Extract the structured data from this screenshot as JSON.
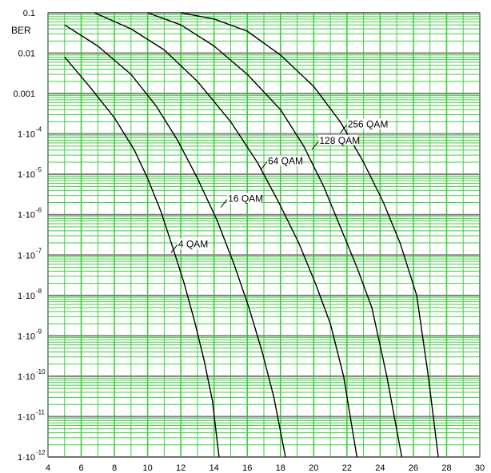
{
  "chart_data": {
    "type": "line",
    "ylabel": "BER",
    "yscale": "log",
    "xlim": [
      4,
      30
    ],
    "ylim": [
      1e-12,
      0.1
    ],
    "x_ticks": [
      "4",
      "6",
      "8",
      "10",
      "12",
      "14",
      "16",
      "18",
      "20",
      "22",
      "24",
      "26",
      "28",
      "30"
    ],
    "y_ticks": [
      {
        "value": 0.1,
        "text": "0.1",
        "sup": ""
      },
      {
        "value": 0.01,
        "text": "0.01",
        "sup": ""
      },
      {
        "value": 0.001,
        "text": "0.001",
        "sup": ""
      },
      {
        "value": 0.0001,
        "text": "1·10",
        "sup": "-4"
      },
      {
        "value": 1e-05,
        "text": "1·10",
        "sup": "-5"
      },
      {
        "value": 1e-06,
        "text": "1·10",
        "sup": "-6"
      },
      {
        "value": 1e-07,
        "text": "1·10",
        "sup": "-7"
      },
      {
        "value": 1e-08,
        "text": "1·10",
        "sup": "-8"
      },
      {
        "value": 1e-09,
        "text": "1·10",
        "sup": "-9"
      },
      {
        "value": 1e-10,
        "text": "1·10",
        "sup": "-10"
      },
      {
        "value": 1e-11,
        "text": "1·10",
        "sup": "-11"
      },
      {
        "value": 1e-12,
        "text": "1·10",
        "sup": "-12"
      }
    ],
    "grid": true,
    "colors": {
      "major_grid": "#808080",
      "minor_grid": "#3fcf3f",
      "curve": "#000000",
      "background": "#ffffff"
    },
    "series": [
      {
        "name": "4 QAM",
        "x": [
          5.0,
          6.5,
          8.0,
          9.2,
          10.0,
          10.8,
          11.5,
          12.2,
          12.8,
          13.4,
          13.9,
          14.3
        ],
        "y": [
          0.008,
          0.0015,
          0.00025,
          4e-05,
          8e-06,
          1.2e-06,
          1.6e-07,
          2e-08,
          2.5e-09,
          2.5e-10,
          2.5e-11,
          1e-12
        ]
      },
      {
        "name": "16 QAM",
        "x": [
          5.0,
          7.0,
          9.0,
          10.5,
          11.8,
          13.0,
          14.2,
          15.2,
          16.1,
          16.9,
          17.6,
          18.3
        ],
        "y": [
          0.05,
          0.015,
          0.003,
          0.0005,
          7e-05,
          8e-06,
          7e-07,
          6e-08,
          5e-09,
          4e-10,
          3e-11,
          1e-12
        ]
      },
      {
        "name": "64 QAM",
        "x": [
          6.8,
          9.0,
          11.0,
          13.0,
          15.0,
          16.6,
          17.9,
          19.1,
          20.1,
          21.0,
          21.8,
          22.6
        ],
        "y": [
          0.1,
          0.04,
          0.012,
          0.002,
          0.0002,
          2e-05,
          2e-06,
          2e-07,
          2e-08,
          2e-09,
          1e-10,
          1e-12
        ]
      },
      {
        "name": "128 QAM",
        "x": [
          10.0,
          12.0,
          14.0,
          16.0,
          18.0,
          19.4,
          20.6,
          21.6,
          22.6,
          23.5,
          24.4,
          25.3
        ],
        "y": [
          0.1,
          0.05,
          0.015,
          0.003,
          0.0004,
          5e-05,
          5e-06,
          5e-07,
          5e-08,
          5e-09,
          1e-10,
          1e-12
        ]
      },
      {
        "name": "256 QAM",
        "x": [
          12.0,
          14.0,
          16.0,
          18.0,
          20.0,
          21.6,
          23.0,
          24.2,
          25.2,
          26.2,
          26.9,
          27.5
        ],
        "y": [
          0.1,
          0.07,
          0.035,
          0.009,
          0.0015,
          0.0002,
          2e-05,
          2e-06,
          2e-07,
          1e-08,
          1e-10,
          1e-12
        ]
      }
    ],
    "annotations": [
      {
        "text": "4 QAM",
        "series": "4 QAM",
        "x": 11.6,
        "y": 1.5e-07
      },
      {
        "text": "16 QAM",
        "series": "16 QAM",
        "x": 14.6,
        "y": 2e-06
      },
      {
        "text": "64 QAM",
        "series": "64 QAM",
        "x": 17.0,
        "y": 1.7e-05
      },
      {
        "text": "128 QAM",
        "series": "128 QAM",
        "x": 20.1,
        "y": 5.5e-05
      },
      {
        "text": "256 QAM",
        "series": "256 QAM",
        "x": 21.8,
        "y": 0.00014
      }
    ]
  }
}
